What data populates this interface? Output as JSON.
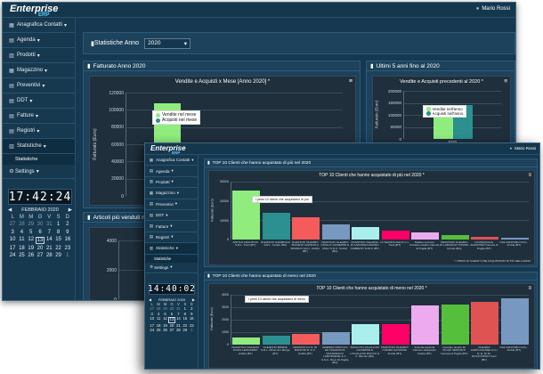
{
  "app": {
    "logo": "Enterprise",
    "logo_sub": "ERP",
    "user": "Mario Rossi"
  },
  "nav": [
    {
      "icon": "▦",
      "label": "Anagrafica Contatti"
    },
    {
      "icon": "▤",
      "label": "Agenda"
    },
    {
      "icon": "▥",
      "label": "Prodotti"
    },
    {
      "icon": "▦",
      "label": "Magazzino"
    },
    {
      "icon": "▤",
      "label": "Preventivi"
    },
    {
      "icon": "▤",
      "label": "DDT"
    },
    {
      "icon": "▤",
      "label": "Fatture"
    },
    {
      "icon": "▤",
      "label": "Registri"
    },
    {
      "icon": "▥",
      "label": "Statistiche"
    }
  ],
  "nav_sub": "Statistiche",
  "settings": "Settings",
  "w1_clock": "17:42:24",
  "w2_clock": "14:40:02",
  "calendar": {
    "month": "FEBBRAIO 2020",
    "w2_month": "FEBBRAIO 2020",
    "dows": [
      "L",
      "M",
      "M",
      "G",
      "V",
      "S",
      "D"
    ],
    "today": 13,
    "days": [
      "27",
      "28",
      "29",
      "30",
      "31",
      "1",
      "2",
      "3",
      "4",
      "5",
      "6",
      "7",
      "8",
      "9",
      "10",
      "11",
      "12",
      "13",
      "14",
      "15",
      "16",
      "17",
      "18",
      "19",
      "20",
      "21",
      "22",
      "23",
      "24",
      "25",
      "26",
      "27",
      "28",
      "29",
      "1"
    ]
  },
  "filter": {
    "label": "Statistiche Anno",
    "value": "2020"
  },
  "panels": {
    "fatturato": "Fatturato Anno 2020",
    "ultimi": "Ultimi 5 anni fino al 2020",
    "articoli": "Articoli più venduti nel",
    "top_piu": "TOP 10 Clienti che hanno acquistato di più nel 2020",
    "top_meno": "TOP 10 Clienti che hanno acquistato di meno nel 2020"
  },
  "chart_data": [
    {
      "type": "bar",
      "title": "Vendite e Acquisti x Mese [Anno 2020] *",
      "ylabel": "Fatturato (Euro)",
      "ylim": [
        0,
        120000
      ],
      "y_ticks": [
        "0",
        "20000",
        "40000",
        "60000",
        "80000",
        "100000",
        "120000"
      ],
      "categories": [
        "Gennaio",
        "Febbraio"
      ],
      "x_labels": [
        "Gennaio",
        "Feb"
      ],
      "series": [
        {
          "name": "Vendite nel mese",
          "color": "#90ed7d",
          "values": [
            108000,
            12000
          ]
        },
        {
          "name": "Acquisti nel mese",
          "color": "#2b908f",
          "values": [
            36000,
            6000
          ]
        }
      ]
    },
    {
      "type": "bar",
      "title": "Vendite e Acquisti precedenti al 2020 *",
      "ylabel": "Fatturato (Euro)",
      "ylim": [
        0,
        200000
      ],
      "y_ticks": [
        "0",
        "50000",
        "100000",
        "150000",
        "200000"
      ],
      "categories": [
        "2020"
      ],
      "series": [
        {
          "name": "Vendite nell'anno",
          "color": "#90ed7d",
          "values": [
            120000
          ]
        },
        {
          "name": "Acquisti nell'anno",
          "color": "#2b908f",
          "values": [
            140000
          ]
        }
      ]
    },
    {
      "type": "bar",
      "title": "",
      "ylim": [
        0,
        4000
      ],
      "y_ticks": [
        "0",
        "2000",
        "4000"
      ],
      "categories": [],
      "values": []
    },
    {
      "type": "bar",
      "title": "TOP 10 Clienti che hanno acquistato di più nel 2020 *",
      "ylabel": "Fatturato (Euro)",
      "ylim": [
        0,
        30000
      ],
      "y_ticks": [
        "0",
        "10000",
        "20000",
        "30000"
      ],
      "tooltip": "I primi 10 clienti che acquistano di più",
      "note": "* I PRIMI 10 CLIENTI CHE ACQUISTANO DI PIÙ NELL'ANNO",
      "categories": [
        "ANTICO FRANTOIO S.R.L. Trani (BT)",
        "OLEIFICIO GARIBOLDI S.R.L. Corato (BA)",
        "OLEIFICIO OLEARIO SOCIETA' AGRICOLA FRANCO S.R.L. Andria (BT)",
        "FRANTOIO OLEARIO CIRILLO GIUSEPPE & FIGLI S.N.C. Terlizzi (BA)",
        "FRANTOIO OLEARIO DI LARANGIA DAVINO CARRETO Terlizzi (BT)",
        "LA TECNOLOGICA s.r.l. Trani (BT)",
        "Taddeo Lorenzo Frantoio oleario Canosa di Puglia (BT)",
        "FRANTOIO OLEARIO DI LARANGIA TONINO Corato (BA)",
        "DI PASQUALE AGOSTINO Canosa di Puglia (BT)",
        "OLE SANTORO S.R.L. Andria (BT)"
      ],
      "colors": [
        "#90ed7d",
        "#2b908f",
        "#f45b5b",
        "#7798bf",
        "#aaeeee",
        "#ff0066",
        "#eeaaee",
        "#55bf3b",
        "#df5353",
        "#7798bf"
      ],
      "values": [
        25500,
        14000,
        11500,
        8000,
        6500,
        4500,
        3500,
        2500,
        1500,
        1000
      ]
    },
    {
      "type": "bar",
      "title": "TOP 10 Clienti che hanno acquistato di meno nel 2020 *",
      "ylabel": "Fatturato (Euro)",
      "ylim": [
        0,
        4000
      ],
      "y_ticks": [
        "0",
        "1000",
        "2000",
        "3000",
        "4000"
      ],
      "tooltip": "I primi 10 clienti che acquistano di meno",
      "categories": [
        "FRANTOIO OLEARIO PUZIO LEONARDO Andria (BT)",
        "OLEIFICIO BORRA S.R.L. Minervino Murge (BT)",
        "MANCINI S.A.S. DI MANCINI R. & C. Andria (BT)",
        "AZIENDA VINICOLA ED OLEARIA DI FRANCESCO LAMORGESE & C. S.N.C. Ruvo Di Puglia (BA)",
        "DISCO DI LOGULLOSI GIUSEPPE E LOGULLOSI ROCCO & C. Bitonto (BA)",
        "FRANTOIO OLEARIO COMMA GIOVANNI Andria (BT)",
        "Azienda Agricola Calzone Gianpaolo Andria (BT)",
        "Frantoio oleario DI PILANI SERVANTI Canosa di Puglia (BT)",
        "OLEARIA AGRICASANNE F.LLI D. E. DI M. DOVICCHINO Trani (BT)",
        "OLE SANTORO S.R.L. Andria (BT)"
      ],
      "colors": [
        "#90ed7d",
        "#2b908f",
        "#f45b5b",
        "#7798bf",
        "#aaeeee",
        "#ff0066",
        "#eeaaee",
        "#55bf3b",
        "#df5353",
        "#7798bf"
      ],
      "values": [
        550,
        700,
        850,
        1000,
        1650,
        1650,
        3150,
        3200,
        3400,
        3700
      ]
    }
  ]
}
